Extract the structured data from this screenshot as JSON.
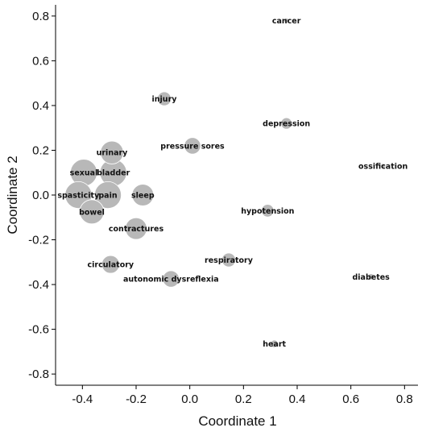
{
  "chart_data": {
    "type": "scatter",
    "title": "",
    "xlabel": "Coordinate 1",
    "ylabel": "Coordinate 2",
    "xlim": [
      -0.5,
      0.85
    ],
    "ylim": [
      -0.85,
      0.85
    ],
    "xticks": [
      "-0.4",
      "-0.2",
      "0.0",
      "0.2",
      "0.4",
      "0.6",
      "0.8"
    ],
    "xtick_values": [
      -0.4,
      -0.2,
      0.0,
      0.2,
      0.4,
      0.6,
      0.8
    ],
    "yticks": [
      "0.8",
      "0.6",
      "0.4",
      "0.2",
      "0.0",
      "-0.2",
      "-0.4",
      "-0.6",
      "-0.8"
    ],
    "ytick_values": [
      0.8,
      0.6,
      0.4,
      0.2,
      0.0,
      -0.2,
      -0.4,
      -0.6,
      -0.8
    ],
    "grid": false,
    "marker_color": "#b8b8b8",
    "points": [
      {
        "label": "cancer",
        "x": 0.36,
        "y": 0.78,
        "size": 0.0
      },
      {
        "label": "injury",
        "x": -0.095,
        "y": 0.43,
        "size": 0.35
      },
      {
        "label": "depression",
        "x": 0.36,
        "y": 0.32,
        "size": 0.25
      },
      {
        "label": "pressure sores",
        "x": 0.01,
        "y": 0.22,
        "size": 0.45
      },
      {
        "label": "urinary",
        "x": -0.29,
        "y": 0.19,
        "size": 0.7
      },
      {
        "label": "ossification",
        "x": 0.72,
        "y": 0.13,
        "size": 0.0
      },
      {
        "label": "sexual",
        "x": -0.395,
        "y": 0.1,
        "size": 0.85
      },
      {
        "label": "bladder",
        "x": -0.285,
        "y": 0.1,
        "size": 0.85
      },
      {
        "label": "spasticity",
        "x": -0.415,
        "y": 0.0,
        "size": 0.85
      },
      {
        "label": "pain",
        "x": -0.305,
        "y": 0.0,
        "size": 0.85
      },
      {
        "label": "sleep",
        "x": -0.175,
        "y": 0.0,
        "size": 0.65
      },
      {
        "label": "bowel",
        "x": -0.365,
        "y": -0.075,
        "size": 0.75
      },
      {
        "label": "hypotension",
        "x": 0.29,
        "y": -0.07,
        "size": 0.3
      },
      {
        "label": "contractures",
        "x": -0.2,
        "y": -0.15,
        "size": 0.65
      },
      {
        "label": "respiratory",
        "x": 0.145,
        "y": -0.29,
        "size": 0.35
      },
      {
        "label": "circulatory",
        "x": -0.295,
        "y": -0.31,
        "size": 0.5
      },
      {
        "label": "autonomic dysreflexia",
        "x": -0.07,
        "y": -0.375,
        "size": 0.45
      },
      {
        "label": "diabetes",
        "x": 0.675,
        "y": -0.365,
        "size": 0.05
      },
      {
        "label": "heart",
        "x": 0.315,
        "y": -0.665,
        "size": 0.1
      }
    ]
  }
}
